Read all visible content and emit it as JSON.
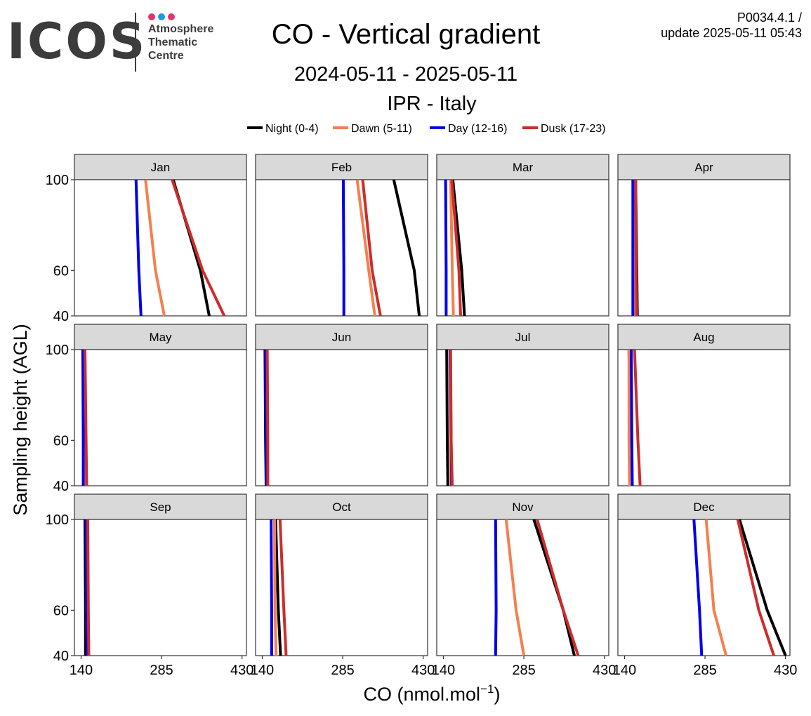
{
  "logo": {
    "wordmark": "ICOS",
    "lines": [
      "Atmosphere",
      "Thematic",
      "Centre"
    ],
    "dot_colors": [
      "#e6336f",
      "#1e9be0",
      "#e6336f"
    ]
  },
  "header": {
    "title": "CO - Vertical gradient",
    "period": "2024-05-11 - 2025-05-11",
    "station": "IPR - Italy",
    "version": "P0034.4.1 /",
    "update": "update  2025-05-11 05:43"
  },
  "chart_data": {
    "type": "line",
    "xlabel": "CO (nmol.mol",
    "xlabel_superscript": "−1",
    "xlabel_suffix": ")",
    "ylabel": "Sampling height (AGL)",
    "xlim": [
      128,
      438
    ],
    "ylim": [
      40,
      100
    ],
    "xticks": [
      140,
      285,
      430
    ],
    "yticks": [
      40,
      60,
      100
    ],
    "heights": [
      40,
      60,
      100
    ],
    "legend_position": "top",
    "series": [
      {
        "name": "Night (0-4)",
        "color": "#000000"
      },
      {
        "name": "Dawn (5-11)",
        "color": "#f4804e"
      },
      {
        "name": "Day (12-16)",
        "color": "#0000ee"
      },
      {
        "name": "Dusk (17-23)",
        "color": "#cc2c2c"
      }
    ],
    "panels": [
      {
        "month": "Jan",
        "values": {
          "Night (0-4)": [
            371,
            355,
            306
          ],
          "Dawn (5-11)": [
            290,
            274,
            256
          ],
          "Day (12-16)": [
            248,
            244,
            239
          ],
          "Dusk (17-23)": [
            398,
            359,
            304
          ]
        }
      },
      {
        "month": "Feb",
        "values": {
          "Night (0-4)": [
            423,
            414,
            377
          ],
          "Dawn (5-11)": [
            343,
            332,
            311
          ],
          "Day (12-16)": [
            287,
            287,
            286
          ],
          "Dusk (17-23)": [
            353,
            338,
            321
          ]
        }
      },
      {
        "month": "Mar",
        "values": {
          "Night (0-4)": [
            178,
            173,
            157
          ],
          "Dawn (5-11)": [
            158,
            156,
            153
          ],
          "Day (12-16)": [
            145,
            145,
            144
          ],
          "Dusk (17-23)": [
            171,
            168,
            155
          ]
        }
      },
      {
        "month": "Apr",
        "values": {
          "Night (0-4)": [
            163,
            162,
            160
          ],
          "Dawn (5-11)": [
            158,
            158,
            157
          ],
          "Day (12-16)": [
            155,
            155,
            155
          ],
          "Dusk (17-23)": [
            162,
            161,
            160
          ]
        }
      },
      {
        "month": "May",
        "values": {
          "Night (0-4)": [
            146,
            146,
            145
          ],
          "Dawn (5-11)": [
            146,
            146,
            145
          ],
          "Day (12-16)": [
            144,
            144,
            143
          ],
          "Dusk (17-23)": [
            150,
            149,
            147
          ]
        }
      },
      {
        "month": "Jun",
        "values": {
          "Night (0-4)": [
            147,
            146,
            145
          ],
          "Dawn (5-11)": [
            149,
            148,
            147
          ],
          "Day (12-16)": [
            148,
            147,
            146
          ],
          "Dusk (17-23)": [
            150,
            150,
            149
          ]
        }
      },
      {
        "month": "Jul",
        "values": {
          "Night (0-4)": [
            148,
            147,
            146
          ],
          "Dawn (5-11)": [
            154,
            153,
            152
          ],
          "Day (12-16)": [
            155,
            154,
            152
          ],
          "Dusk (17-23)": [
            156,
            154,
            153
          ]
        }
      },
      {
        "month": "Aug",
        "values": {
          "Night (0-4)": [
            151,
            150,
            148
          ],
          "Dawn (5-11)": [
            149,
            148,
            148
          ],
          "Day (12-16)": [
            154,
            153,
            152
          ],
          "Dusk (17-23)": [
            168,
            164,
            158
          ]
        }
      },
      {
        "month": "Sep",
        "values": {
          "Night (0-4)": [
            148,
            148,
            147
          ],
          "Dawn (5-11)": [
            151,
            150,
            150
          ],
          "Day (12-16)": [
            151,
            150,
            149
          ],
          "Dusk (17-23)": [
            154,
            153,
            152
          ]
        }
      },
      {
        "month": "Oct",
        "values": {
          "Night (0-4)": [
            173,
            169,
            164
          ],
          "Dawn (5-11)": [
            165,
            163,
            162
          ],
          "Day (12-16)": [
            157,
            157,
            156
          ],
          "Dusk (17-23)": [
            183,
            179,
            172
          ]
        }
      },
      {
        "month": "Nov",
        "values": {
          "Night (0-4)": [
            376,
            356,
            303
          ],
          "Dawn (5-11)": [
            285,
            271,
            253
          ],
          "Day (12-16)": [
            234,
            235,
            234
          ],
          "Dusk (17-23)": [
            383,
            356,
            309
          ]
        }
      },
      {
        "month": "Dec",
        "values": {
          "Night (0-4)": [
            430,
            397,
            347
          ],
          "Dawn (5-11)": [
            323,
            301,
            287
          ],
          "Day (12-16)": [
            279,
            275,
            265
          ],
          "Dusk (17-23)": [
            409,
            382,
            344
          ]
        }
      }
    ]
  }
}
